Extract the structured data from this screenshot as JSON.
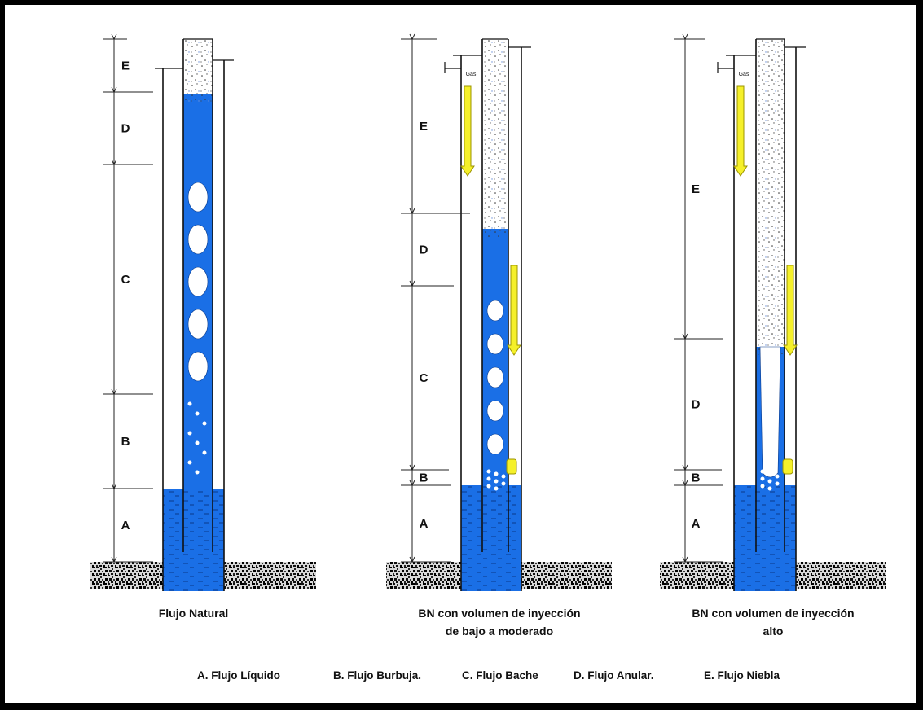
{
  "diagram": {
    "panels": [
      {
        "caption": [
          "Flujo Natural"
        ],
        "zones": [
          "E",
          "D",
          "C",
          "B",
          "A"
        ],
        "gas_label": ""
      },
      {
        "caption": [
          "BN con volumen de inyección",
          "de bajo a moderado"
        ],
        "zones": [
          "E",
          "D",
          "C",
          "B",
          "A"
        ],
        "gas_label": "Gas"
      },
      {
        "caption": [
          "BN con volumen de inyección",
          "alto"
        ],
        "zones": [
          "E",
          "D",
          "B",
          "A"
        ],
        "gas_label": "Gas"
      }
    ],
    "legend": [
      "A. Flujo Líquido",
      "B. Flujo Burbuja.",
      "C. Flujo Bache",
      "D. Flujo Anular.",
      "E. Flujo Niebla"
    ],
    "colors": {
      "liquid": "#1a6fe6",
      "arrow": "#f5f02a",
      "arrow_outline": "#9c9400",
      "ground": "#2b2b2b",
      "background": "#ffffff",
      "frame": "#000000"
    }
  }
}
